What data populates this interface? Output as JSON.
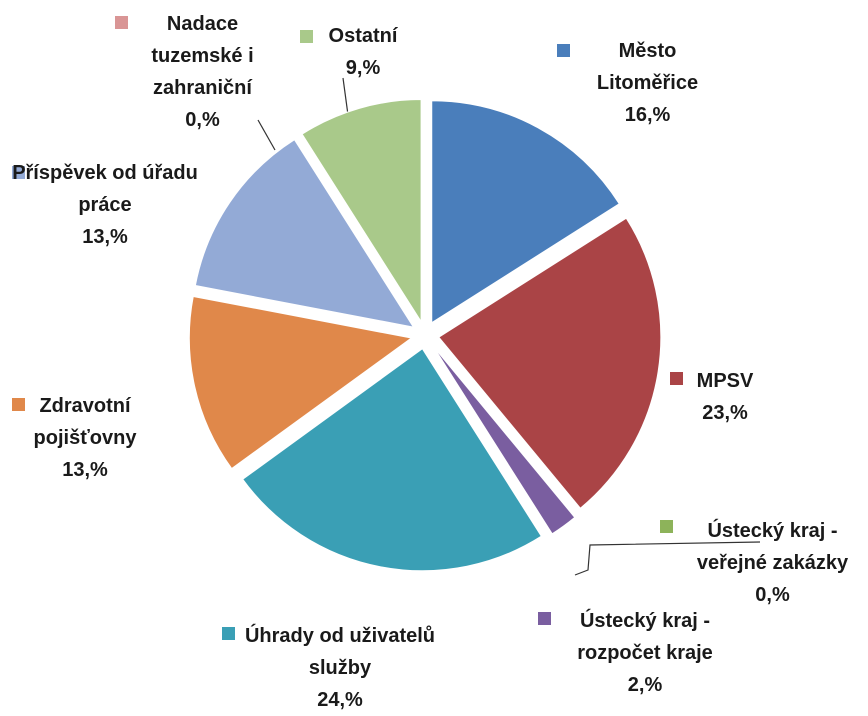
{
  "chart_data": {
    "type": "pie",
    "categories": [
      "Město Litoměřice",
      "MPSV",
      "Ústecký kraj - veřejné zakázky",
      "Ústecký kraj - rozpočet kraje",
      "Úhrady od uživatelů služby",
      "Zdravotní pojišťovny",
      "Příspěvek od úřadu práce",
      "Nadace tuzemské i zahraniční",
      "Ostatní"
    ],
    "values": [
      16,
      23,
      0,
      2,
      24,
      13,
      13,
      0,
      9
    ],
    "value_labels": [
      "16,%",
      "23,%",
      "0,%",
      "2,%",
      "24,%",
      "13,%",
      "13,%",
      "0,%",
      "9,%"
    ],
    "colors": [
      "#4a7ebb",
      "#aa4446",
      "#8db35a",
      "#7a5ea0",
      "#3a9fb5",
      "#e0884a",
      "#93aad6",
      "#d99595",
      "#a9c98a"
    ]
  }
}
